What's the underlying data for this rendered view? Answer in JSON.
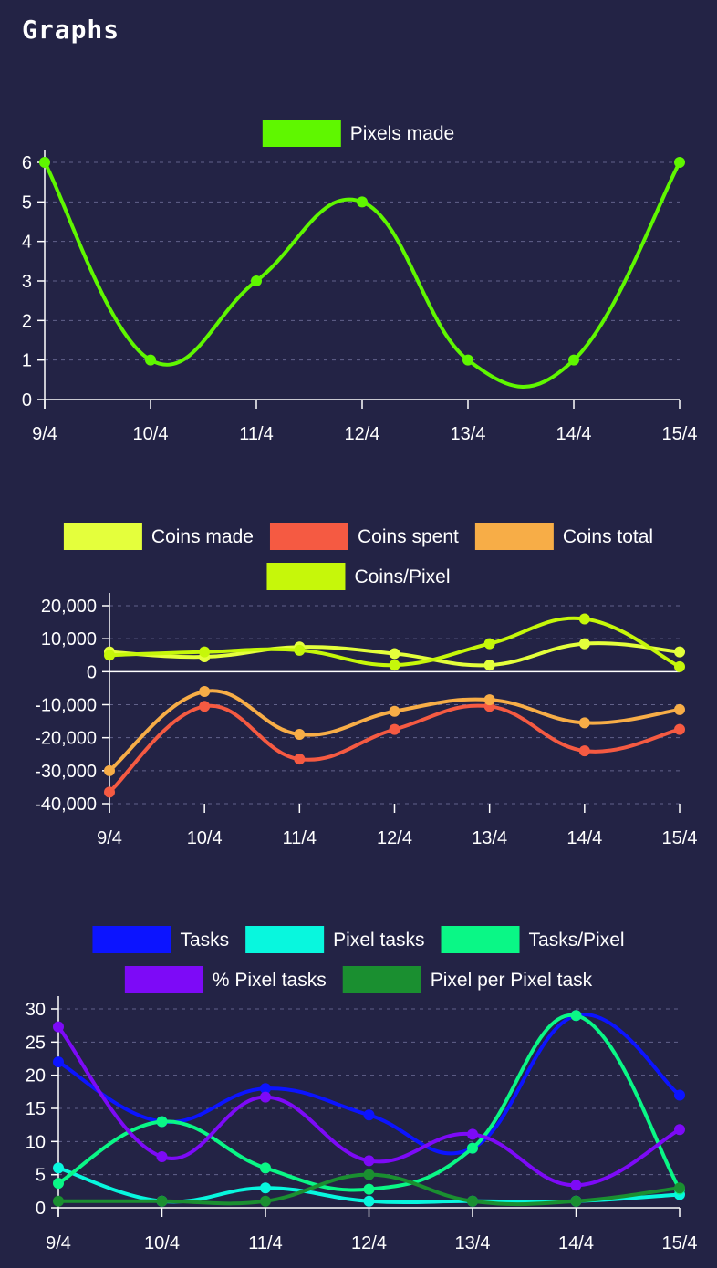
{
  "page": {
    "title": "Graphs"
  },
  "chart_data": [
    {
      "type": "line",
      "categories": [
        "9/4",
        "10/4",
        "11/4",
        "12/4",
        "13/4",
        "14/4",
        "15/4"
      ],
      "series": [
        {
          "name": "Pixels made",
          "color": "#5ff700",
          "values": [
            6,
            1,
            3,
            5,
            1,
            1,
            6
          ]
        }
      ],
      "ylim": [
        0,
        6
      ],
      "yticks": [
        0,
        1,
        2,
        3,
        4,
        5,
        6
      ],
      "ytick_labels": [
        "0",
        "1",
        "2",
        "3",
        "4",
        "5",
        "6"
      ],
      "grid": true,
      "legend": "top"
    },
    {
      "type": "line",
      "categories": [
        "9/4",
        "10/4",
        "11/4",
        "12/4",
        "13/4",
        "14/4",
        "15/4"
      ],
      "series": [
        {
          "name": "Coins made",
          "color": "#e4ff3c",
          "values": [
            6000,
            4500,
            7500,
            5500,
            2000,
            8500,
            6000
          ]
        },
        {
          "name": "Coins spent",
          "color": "#f55a42",
          "values": [
            -36500,
            -10500,
            -26500,
            -17500,
            -10500,
            -24000,
            -17500
          ]
        },
        {
          "name": "Coins total",
          "color": "#f7ad47",
          "values": [
            -30000,
            -6000,
            -19000,
            -12000,
            -8500,
            -15500,
            -11500
          ]
        },
        {
          "name": "Coins/Pixel",
          "color": "#c6f70a",
          "values": [
            5000,
            6000,
            6500,
            2000,
            8500,
            16000,
            1500
          ]
        }
      ],
      "ylim": [
        -40000,
        20000
      ],
      "yticks": [
        20000,
        10000,
        0,
        -10000,
        -20000,
        -30000,
        -40000
      ],
      "ytick_labels": [
        "20,000",
        "10,000",
        "0",
        "-10,000",
        "-20,000",
        "-30,000",
        "-40,000"
      ],
      "grid": true,
      "legend": "top"
    },
    {
      "type": "line",
      "categories": [
        "9/4",
        "10/4",
        "11/4",
        "12/4",
        "13/4",
        "14/4",
        "15/4"
      ],
      "series": [
        {
          "name": "Tasks",
          "color": "#0c14ff",
          "values": [
            22,
            13,
            18,
            14,
            9,
            29,
            17
          ]
        },
        {
          "name": "Pixel tasks",
          "color": "#08f7de",
          "values": [
            6,
            1,
            3,
            1,
            1,
            1,
            2
          ]
        },
        {
          "name": "Tasks/Pixel",
          "color": "#0af786",
          "values": [
            3.7,
            13,
            6,
            2.8,
            9,
            29,
            2.8
          ]
        },
        {
          "name": "% Pixel tasks",
          "color": "#7d0af7",
          "values": [
            27.3,
            7.7,
            16.7,
            7.1,
            11.1,
            3.4,
            11.8
          ]
        },
        {
          "name": "Pixel per Pixel task",
          "color": "#1a8f30",
          "values": [
            1,
            1,
            1,
            5,
            1,
            1,
            3
          ]
        }
      ],
      "ylim": [
        0,
        30
      ],
      "yticks": [
        0,
        5,
        10,
        15,
        20,
        25,
        30
      ],
      "ytick_labels": [
        "0",
        "5",
        "10",
        "15",
        "20",
        "25",
        "30"
      ],
      "grid": true,
      "legend": "top"
    }
  ]
}
